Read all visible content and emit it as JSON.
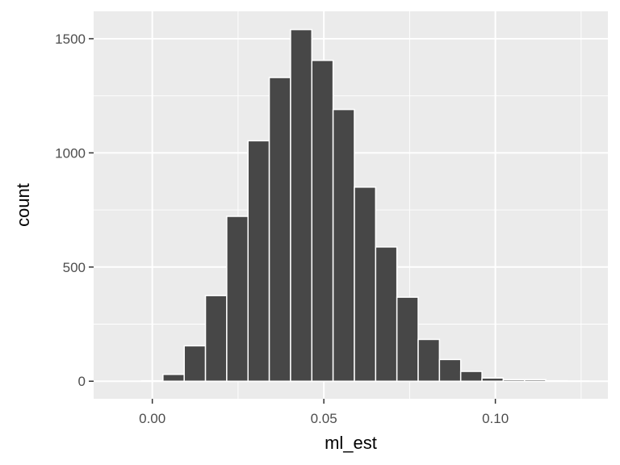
{
  "chart_data": {
    "type": "bar",
    "title": "",
    "xlabel": "ml_est",
    "ylabel": "count",
    "xlim": [
      -0.0171,
      0.1328
    ],
    "ylim": [
      -77,
      1620
    ],
    "bin_width": 0.0062,
    "x": [
      0.0,
      0.0062,
      0.0124,
      0.0186,
      0.0248,
      0.031,
      0.0372,
      0.0434,
      0.0496,
      0.0558,
      0.062,
      0.0682,
      0.0744,
      0.0806,
      0.0868,
      0.093,
      0.0992,
      0.1054,
      0.1116,
      0.1178,
      0.124
    ],
    "values": [
      2,
      30,
      155,
      375,
      722,
      1053,
      1330,
      1540,
      1405,
      1190,
      850,
      588,
      368,
      183,
      95,
      43,
      14,
      7,
      7,
      2,
      1
    ],
    "x_ticks": [
      {
        "value": 0.0,
        "label": "0.00"
      },
      {
        "value": 0.05,
        "label": "0.05"
      },
      {
        "value": 0.1,
        "label": "0.10"
      }
    ],
    "y_ticks": [
      {
        "value": 0,
        "label": "0"
      },
      {
        "value": 500,
        "label": "500"
      },
      {
        "value": 1000,
        "label": "1000"
      },
      {
        "value": 1500,
        "label": "1500"
      }
    ],
    "grid": true,
    "colors": {
      "bar": "#474747",
      "panel": "#ebebeb",
      "grid": "#ffffff"
    }
  }
}
